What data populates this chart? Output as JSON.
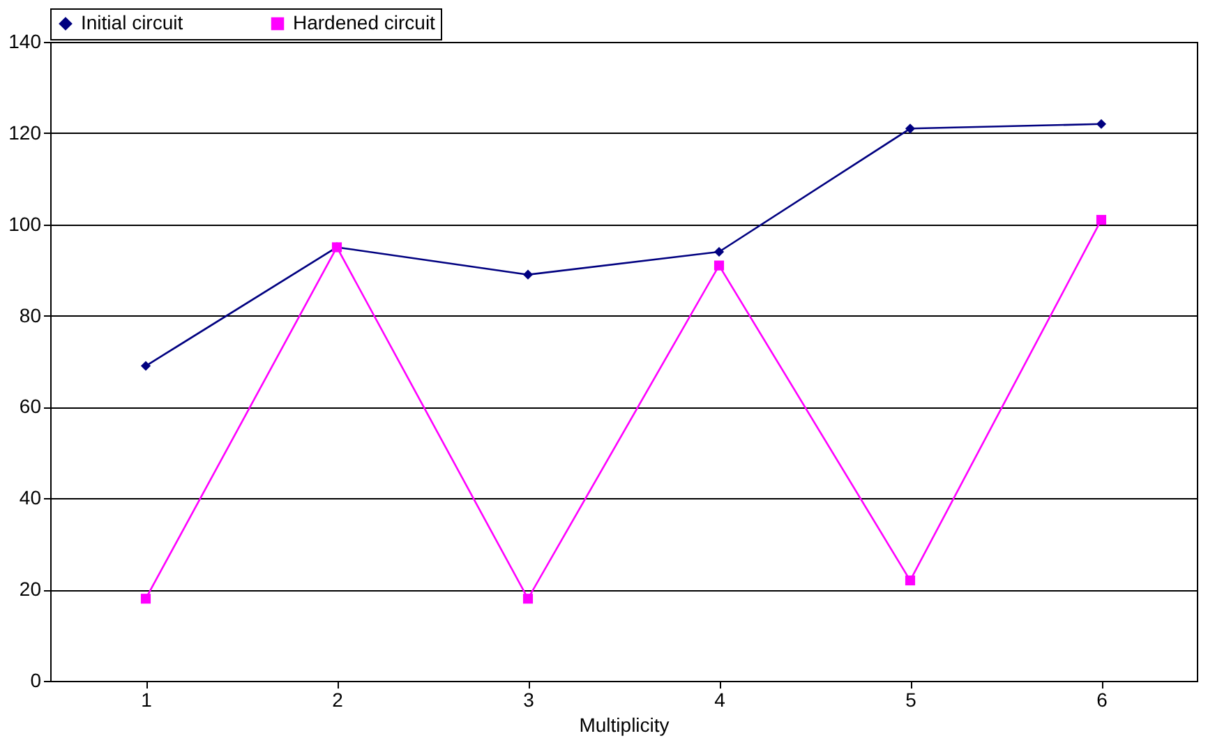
{
  "chart_data": {
    "type": "line",
    "xlabel": "Multiplicity",
    "categories": [
      "1",
      "2",
      "3",
      "4",
      "5",
      "6"
    ],
    "series": [
      {
        "name": "Initial circuit",
        "color": "#000080",
        "marker": "diamond",
        "values": [
          69,
          95,
          89,
          94,
          121,
          122
        ]
      },
      {
        "name": "Hardened circuit",
        "color": "#ff00ff",
        "marker": "square",
        "values": [
          18,
          95,
          18,
          91,
          22,
          101
        ]
      }
    ],
    "ylim": [
      0,
      140
    ],
    "yticks": [
      0,
      20,
      40,
      60,
      80,
      100,
      120,
      140
    ],
    "grid": "y",
    "legend": "top",
    "line_style": "solid"
  }
}
